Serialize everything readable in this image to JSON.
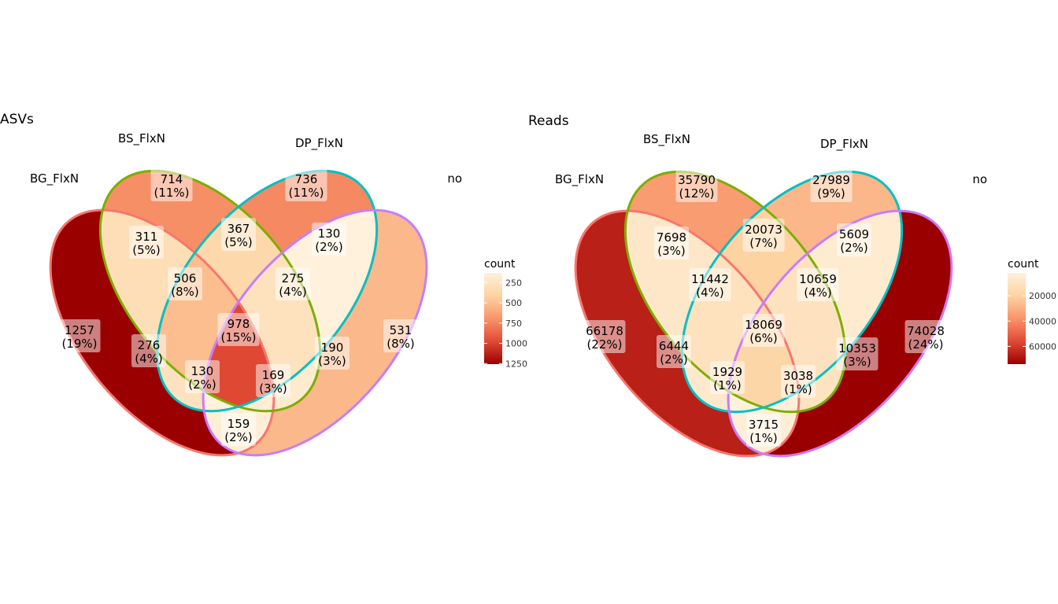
{
  "chart_data": [
    {
      "type": "venn",
      "title": "ASVs",
      "sets": [
        "BG_FlxN",
        "BS_FlxN",
        "DP_FlxN",
        "no"
      ],
      "regions": [
        {
          "sets": [
            "BG_FlxN"
          ],
          "count": 1257,
          "percent": "(19%)"
        },
        {
          "sets": [
            "BS_FlxN"
          ],
          "count": 714,
          "percent": "(11%)"
        },
        {
          "sets": [
            "DP_FlxN"
          ],
          "count": 736,
          "percent": "(11%)"
        },
        {
          "sets": [
            "no"
          ],
          "count": 531,
          "percent": "(8%)"
        },
        {
          "sets": [
            "BG_FlxN",
            "BS_FlxN"
          ],
          "count": 311,
          "percent": "(5%)"
        },
        {
          "sets": [
            "BS_FlxN",
            "DP_FlxN"
          ],
          "count": 367,
          "percent": "(5%)"
        },
        {
          "sets": [
            "DP_FlxN",
            "no"
          ],
          "count": 130,
          "percent": "(2%)"
        },
        {
          "sets": [
            "BG_FlxN",
            "BS_FlxN",
            "DP_FlxN"
          ],
          "count": 506,
          "percent": "(8%)"
        },
        {
          "sets": [
            "BS_FlxN",
            "DP_FlxN",
            "no"
          ],
          "count": 275,
          "percent": "(4%)"
        },
        {
          "sets": [
            "BG_FlxN",
            "BS_FlxN",
            "DP_FlxN",
            "no"
          ],
          "count": 978,
          "percent": "(15%)"
        },
        {
          "sets": [
            "BG_FlxN",
            "DP_FlxN"
          ],
          "count": 276,
          "percent": "(4%)"
        },
        {
          "sets": [
            "BS_FlxN",
            "no"
          ],
          "count": 190,
          "percent": "(3%)"
        },
        {
          "sets": [
            "BG_FlxN",
            "DP_FlxN",
            "no"
          ],
          "count": 130,
          "percent": "(2%)"
        },
        {
          "sets": [
            "BG_FlxN",
            "BS_FlxN",
            "no"
          ],
          "count": 169,
          "percent": "(3%)"
        },
        {
          "sets": [
            "BG_FlxN",
            "no"
          ],
          "count": 159,
          "percent": "(2%)"
        }
      ],
      "legend": {
        "title": "count",
        "ticks": [
          "250",
          "500",
          "750",
          "1000",
          "1250"
        ],
        "tick_values": [
          250,
          500,
          750,
          1000,
          1250
        ],
        "range": [
          130,
          1257
        ]
      }
    },
    {
      "type": "venn",
      "title": "Reads",
      "sets": [
        "BG_FlxN",
        "BS_FlxN",
        "DP_FlxN",
        "no"
      ],
      "regions": [
        {
          "sets": [
            "BG_FlxN"
          ],
          "count": 66178,
          "percent": "(22%)"
        },
        {
          "sets": [
            "BS_FlxN"
          ],
          "count": 35790,
          "percent": "(12%)"
        },
        {
          "sets": [
            "DP_FlxN"
          ],
          "count": 27989,
          "percent": "(9%)"
        },
        {
          "sets": [
            "no"
          ],
          "count": 74028,
          "percent": "(24%)"
        },
        {
          "sets": [
            "BG_FlxN",
            "BS_FlxN"
          ],
          "count": 7698,
          "percent": "(3%)"
        },
        {
          "sets": [
            "BS_FlxN",
            "DP_FlxN"
          ],
          "count": 20073,
          "percent": "(7%)"
        },
        {
          "sets": [
            "DP_FlxN",
            "no"
          ],
          "count": 5609,
          "percent": "(2%)"
        },
        {
          "sets": [
            "BG_FlxN",
            "BS_FlxN",
            "DP_FlxN"
          ],
          "count": 11442,
          "percent": "(4%)"
        },
        {
          "sets": [
            "BS_FlxN",
            "DP_FlxN",
            "no"
          ],
          "count": 10659,
          "percent": "(4%)"
        },
        {
          "sets": [
            "BG_FlxN",
            "BS_FlxN",
            "DP_FlxN",
            "no"
          ],
          "count": 18069,
          "percent": "(6%)"
        },
        {
          "sets": [
            "BG_FlxN",
            "DP_FlxN"
          ],
          "count": 6444,
          "percent": "(2%)"
        },
        {
          "sets": [
            "BS_FlxN",
            "no"
          ],
          "count": 10353,
          "percent": "(3%)"
        },
        {
          "sets": [
            "BG_FlxN",
            "DP_FlxN",
            "no"
          ],
          "count": 1929,
          "percent": "(1%)"
        },
        {
          "sets": [
            "BG_FlxN",
            "BS_FlxN",
            "no"
          ],
          "count": 3038,
          "percent": "(1%)"
        },
        {
          "sets": [
            "BG_FlxN",
            "no"
          ],
          "count": 3715,
          "percent": "(1%)"
        }
      ],
      "legend": {
        "title": "count",
        "ticks": [
          "20000",
          "40000",
          "60000"
        ],
        "tick_values": [
          20000,
          40000,
          60000
        ],
        "range": [
          1929,
          74028
        ]
      }
    }
  ],
  "colors": {
    "BG_FlxN": "#F8766D",
    "BS_FlxN": "#7CAE00",
    "DP_FlxN": "#00BFC4",
    "no": "#C77CFF",
    "scale_low": "#FFF1DC",
    "scale_high": "#9B0000"
  }
}
